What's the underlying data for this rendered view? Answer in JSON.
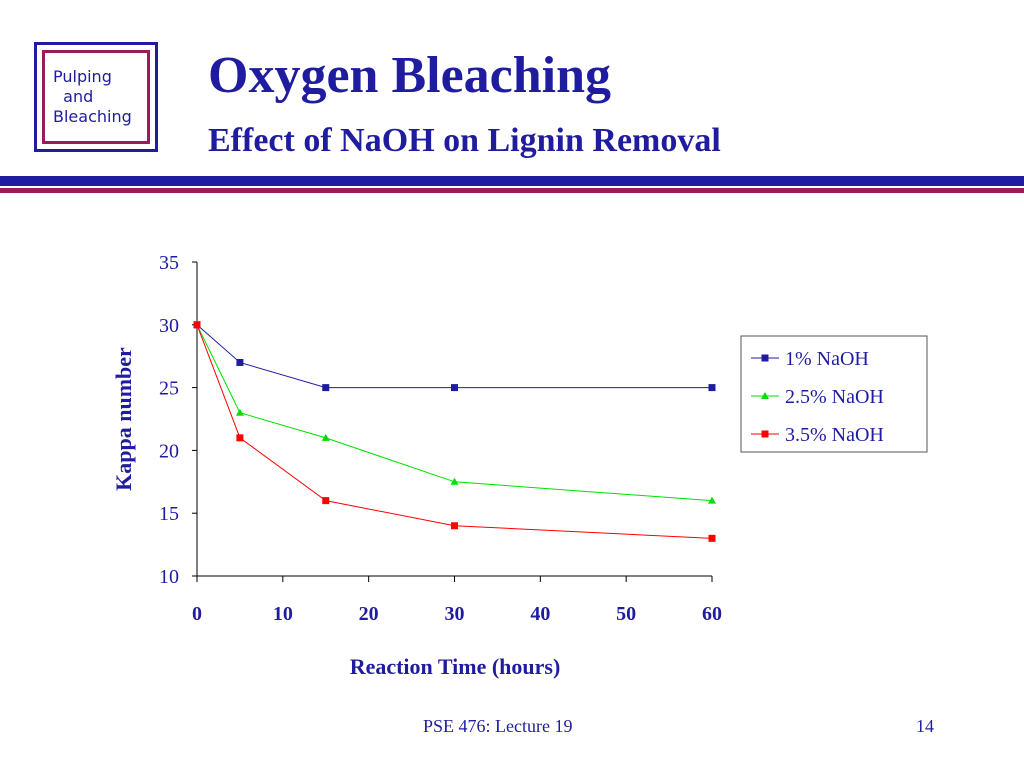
{
  "logo": {
    "line1": "Pulping",
    "line2": "and",
    "line3": "Bleaching"
  },
  "slide": {
    "title": "Oxygen Bleaching",
    "subtitle": "Effect of NaOH on Lignin Removal",
    "footer": "PSE 476: Lecture 19",
    "page_number": "14"
  },
  "colors": {
    "brand_blue": "#1f1ca0",
    "brand_maroon": "#9b1b5c"
  },
  "chart_data": {
    "type": "line",
    "title": "",
    "xlabel": "Reaction Time (hours)",
    "ylabel": "Kappa number",
    "xlim": [
      0,
      60
    ],
    "ylim": [
      10,
      35
    ],
    "xticks": [
      0,
      10,
      20,
      30,
      40,
      50,
      60
    ],
    "yticks": [
      10,
      15,
      20,
      25,
      30,
      35
    ],
    "grid": false,
    "legend_position": "right",
    "series": [
      {
        "name": "1% NaOH",
        "color": "#1f1ca0",
        "marker": "square",
        "x": [
          0,
          5,
          15,
          30,
          60
        ],
        "y": [
          30,
          27,
          25,
          25,
          25
        ]
      },
      {
        "name": "2.5% NaOH",
        "color": "#00e000",
        "marker": "triangle",
        "x": [
          0,
          5,
          15,
          30,
          60
        ],
        "y": [
          30,
          23,
          21,
          17.5,
          16
        ]
      },
      {
        "name": "3.5% NaOH",
        "color": "#ff0000",
        "marker": "square",
        "x": [
          0,
          5,
          15,
          30,
          60
        ],
        "y": [
          30,
          21,
          16,
          14,
          13
        ]
      }
    ]
  }
}
